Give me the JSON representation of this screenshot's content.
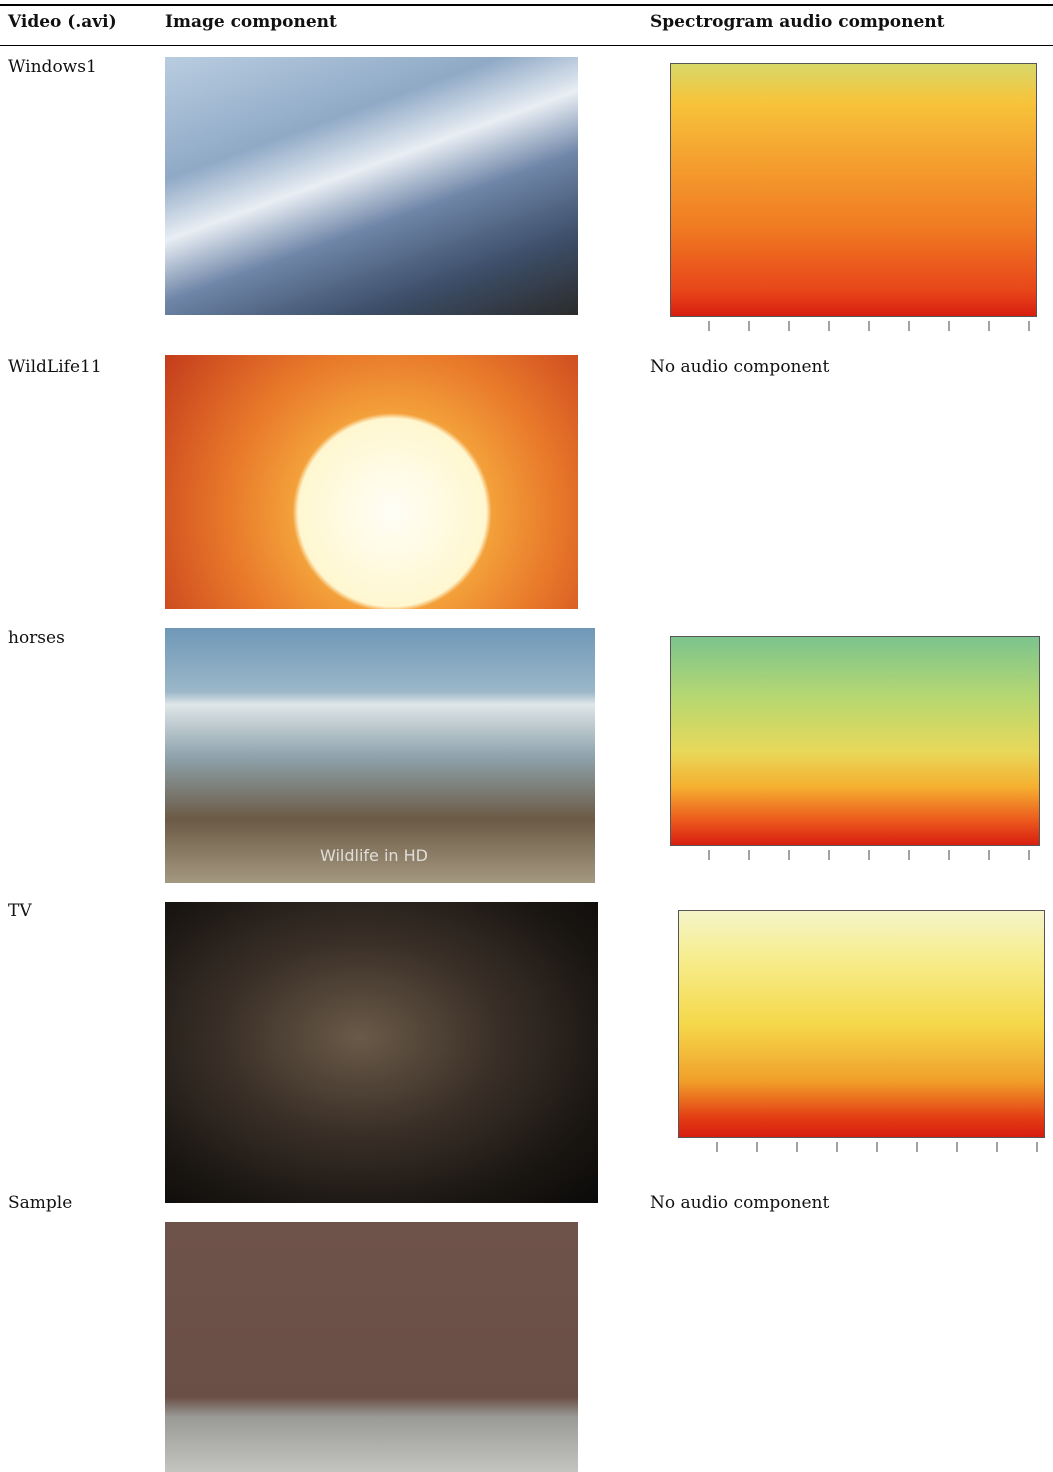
{
  "table": {
    "header": [
      "Video (.avi)",
      "Image component",
      "Spectrogram audio component"
    ],
    "rows": [
      {
        "video": "Windows1"
      },
      {
        "video": "WildLife11",
        "audio": "No audio component"
      },
      {
        "video": "horses",
        "image_text": "Wildlife in HD"
      },
      {
        "video": "TV"
      },
      {
        "video": "Sample",
        "audio": "No audio component"
      }
    ]
  }
}
